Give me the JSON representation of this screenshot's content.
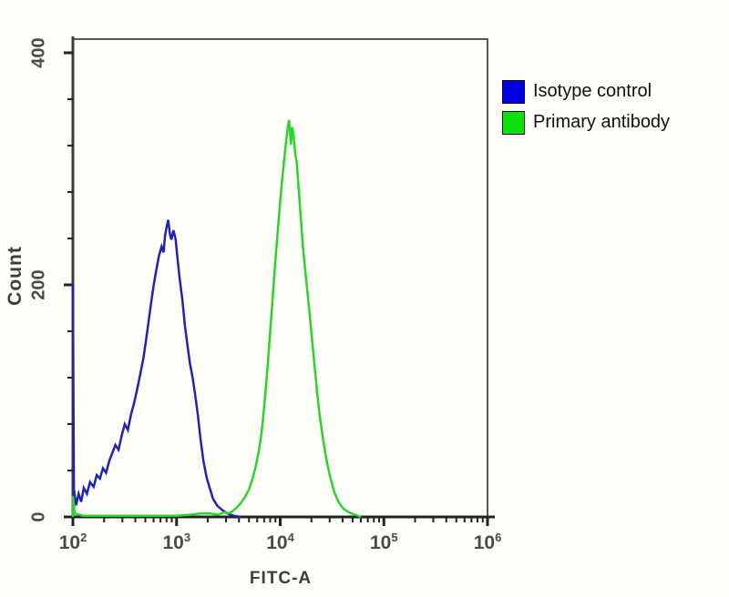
{
  "figure": {
    "xlabel": "FITC-A",
    "ylabel": "Count"
  },
  "legend": {
    "items": [
      {
        "label": "Isotype control",
        "color": "#0000e0"
      },
      {
        "label": "Primary antibody",
        "color": "#0ce00c"
      }
    ]
  },
  "chart_data": {
    "type": "line",
    "subtype": "flow-cytometry-histogram-overlay",
    "title": "",
    "xlabel": "FITC-A",
    "ylabel": "Count",
    "x_scale": "log10",
    "xlim_log": [
      2,
      6
    ],
    "ylim": [
      0,
      412
    ],
    "grid": false,
    "legend_position": "outside-top-right",
    "x_tick_base": "10",
    "x_ticks_exponents": [
      2,
      3,
      4,
      5,
      6
    ],
    "y_ticks": [
      0,
      200,
      400
    ],
    "y_minor_step": 40,
    "axis_color": "#232323",
    "frame_color": "#58585a",
    "series": [
      {
        "name": "Isotype control",
        "color": "#2222b4",
        "peak": {
          "x_log": 2.92,
          "count": 256
        },
        "points": [
          [
            2.0,
            200
          ],
          [
            2.01,
            24
          ],
          [
            2.03,
            10
          ],
          [
            2.055,
            20
          ],
          [
            2.08,
            13
          ],
          [
            2.105,
            25
          ],
          [
            2.135,
            20
          ],
          [
            2.165,
            30
          ],
          [
            2.2,
            26
          ],
          [
            2.23,
            36
          ],
          [
            2.26,
            33
          ],
          [
            2.29,
            42
          ],
          [
            2.32,
            38
          ],
          [
            2.35,
            48
          ],
          [
            2.38,
            55
          ],
          [
            2.41,
            62
          ],
          [
            2.44,
            58
          ],
          [
            2.47,
            70
          ],
          [
            2.5,
            80
          ],
          [
            2.53,
            75
          ],
          [
            2.56,
            88
          ],
          [
            2.59,
            98
          ],
          [
            2.62,
            110
          ],
          [
            2.65,
            123
          ],
          [
            2.68,
            137
          ],
          [
            2.705,
            152
          ],
          [
            2.73,
            168
          ],
          [
            2.755,
            185
          ],
          [
            2.78,
            200
          ],
          [
            2.805,
            213
          ],
          [
            2.83,
            225
          ],
          [
            2.855,
            233
          ],
          [
            2.875,
            228
          ],
          [
            2.89,
            243
          ],
          [
            2.905,
            250
          ],
          [
            2.92,
            256
          ],
          [
            2.935,
            244
          ],
          [
            2.95,
            239
          ],
          [
            2.97,
            247
          ],
          [
            2.99,
            240
          ],
          [
            3.01,
            222
          ],
          [
            3.03,
            205
          ],
          [
            3.055,
            188
          ],
          [
            3.08,
            165
          ],
          [
            3.105,
            148
          ],
          [
            3.13,
            132
          ],
          [
            3.155,
            120
          ],
          [
            3.18,
            105
          ],
          [
            3.205,
            88
          ],
          [
            3.23,
            68
          ],
          [
            3.26,
            48
          ],
          [
            3.29,
            34
          ],
          [
            3.32,
            25
          ],
          [
            3.35,
            16
          ],
          [
            3.39,
            10
          ],
          [
            3.44,
            6
          ],
          [
            3.49,
            3
          ],
          [
            3.55,
            1
          ],
          [
            3.62,
            0
          ]
        ]
      },
      {
        "name": "Primary antibody",
        "color": "#2dd32d",
        "peak": {
          "x_log": 4.085,
          "count": 342
        },
        "points": [
          [
            2.0,
            0
          ],
          [
            2.0,
            18
          ],
          [
            2.018,
            3
          ],
          [
            2.1,
            1
          ],
          [
            2.4,
            1
          ],
          [
            2.7,
            1
          ],
          [
            3.0,
            1
          ],
          [
            3.15,
            2
          ],
          [
            3.23,
            3
          ],
          [
            3.32,
            3
          ],
          [
            3.4,
            2
          ],
          [
            3.46,
            4
          ],
          [
            3.5,
            3
          ],
          [
            3.54,
            5
          ],
          [
            3.58,
            8
          ],
          [
            3.62,
            12
          ],
          [
            3.66,
            17
          ],
          [
            3.7,
            24
          ],
          [
            3.73,
            32
          ],
          [
            3.76,
            42
          ],
          [
            3.79,
            55
          ],
          [
            3.82,
            72
          ],
          [
            3.84,
            90
          ],
          [
            3.86,
            110
          ],
          [
            3.88,
            132
          ],
          [
            3.9,
            156
          ],
          [
            3.92,
            180
          ],
          [
            3.94,
            205
          ],
          [
            3.96,
            228
          ],
          [
            3.98,
            250
          ],
          [
            4.0,
            272
          ],
          [
            4.02,
            292
          ],
          [
            4.04,
            310
          ],
          [
            4.06,
            326
          ],
          [
            4.075,
            337
          ],
          [
            4.085,
            342
          ],
          [
            4.095,
            330
          ],
          [
            4.105,
            321
          ],
          [
            4.115,
            336
          ],
          [
            4.13,
            328
          ],
          [
            4.145,
            313
          ],
          [
            4.16,
            305
          ],
          [
            4.18,
            280
          ],
          [
            4.2,
            255
          ],
          [
            4.22,
            232
          ],
          [
            4.25,
            205
          ],
          [
            4.28,
            178
          ],
          [
            4.31,
            150
          ],
          [
            4.34,
            122
          ],
          [
            4.37,
            95
          ],
          [
            4.4,
            75
          ],
          [
            4.44,
            52
          ],
          [
            4.48,
            35
          ],
          [
            4.52,
            22
          ],
          [
            4.56,
            13
          ],
          [
            4.61,
            7
          ],
          [
            4.66,
            4
          ],
          [
            4.72,
            2
          ],
          [
            4.78,
            0
          ]
        ]
      }
    ]
  }
}
